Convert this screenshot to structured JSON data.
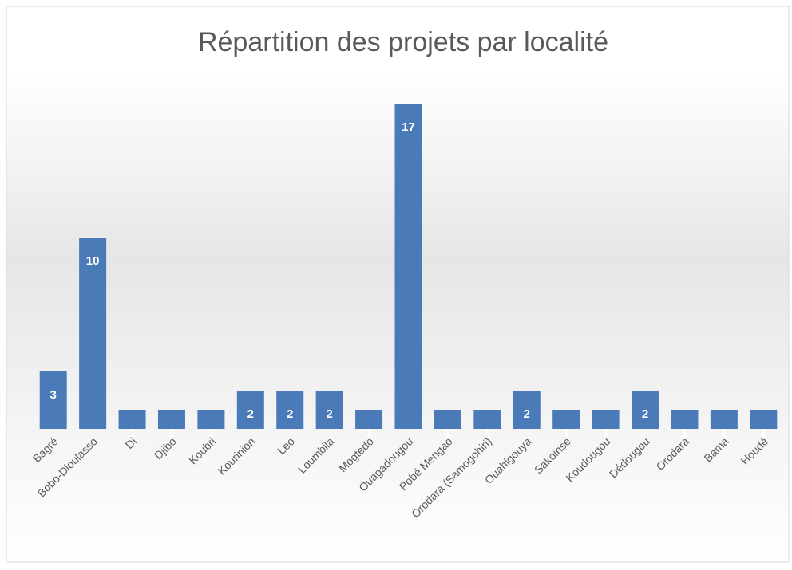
{
  "chart_data": {
    "type": "bar",
    "title": "Répartition des projets par localité",
    "categories": [
      "Bagré",
      "Bobo-Dioulasso",
      "Di",
      "Djibo",
      "Koubri",
      "Kourinion",
      "Leo",
      "Loumbila",
      "Mogtedo",
      "Ouagadougou",
      "Pobé Mengao",
      "Orodara (Samogohiri)",
      "Ouahigouya",
      "Sakoinsé",
      "Koudougou",
      "Dédougou",
      "Orodara",
      "Bama",
      "Houdé"
    ],
    "values": [
      3,
      10,
      1,
      1,
      1,
      2,
      2,
      2,
      1,
      17,
      1,
      1,
      2,
      1,
      1,
      2,
      1,
      1,
      1
    ],
    "color": "#4a7ab8",
    "ylim": [
      0,
      18
    ]
  }
}
